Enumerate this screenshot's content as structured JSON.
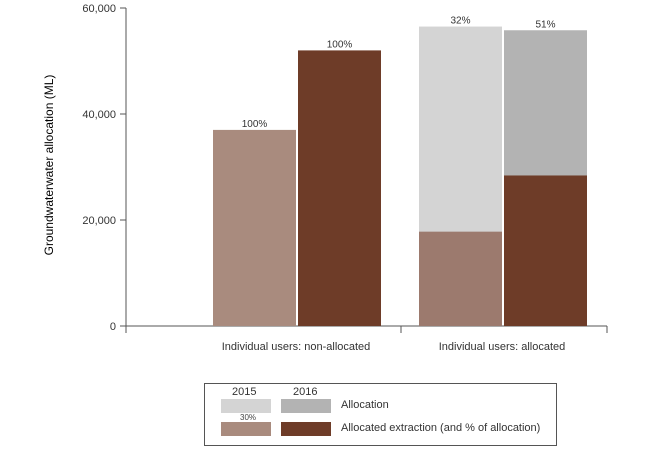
{
  "chart_data": {
    "type": "bar",
    "title": "",
    "ylabel": "Groundwaterwater allocation (ML)",
    "ylim": [
      0,
      60000
    ],
    "yticks": [
      "0",
      "20,000",
      "40,000",
      "60,000"
    ],
    "ytick_values": [
      0,
      20000,
      40000,
      60000
    ],
    "categories": [
      "Individual users: non-allocated",
      "Individual users: allocated"
    ],
    "years": [
      "2015",
      "2016"
    ],
    "series": [
      {
        "name": "Allocation",
        "values_2015": [
          null,
          56500
        ],
        "values_2016": [
          null,
          55800
        ]
      },
      {
        "name": "Allocated extraction (and % of allocation)",
        "values_2015": [
          37000,
          17800
        ],
        "values_2016": [
          52000,
          28400
        ]
      }
    ],
    "bar_labels": {
      "non_allocated_2015": "100%",
      "non_allocated_2016": "100%",
      "allocated_2015": "32%",
      "allocated_2016": "51%"
    },
    "colors": {
      "alloc_2015": "#d4d4d4",
      "alloc_2016": "#b3b3b3",
      "extract_2015_nonalloc": "#a98b7e",
      "extract_2015_alloc": "#9c7a6e",
      "extract_2016": "#6e3c28"
    }
  },
  "legend": {
    "year_2015": "2015",
    "year_2016": "2016",
    "allocation": "Allocation",
    "extraction": "Allocated extraction (and % of allocation)",
    "note": "30%"
  }
}
